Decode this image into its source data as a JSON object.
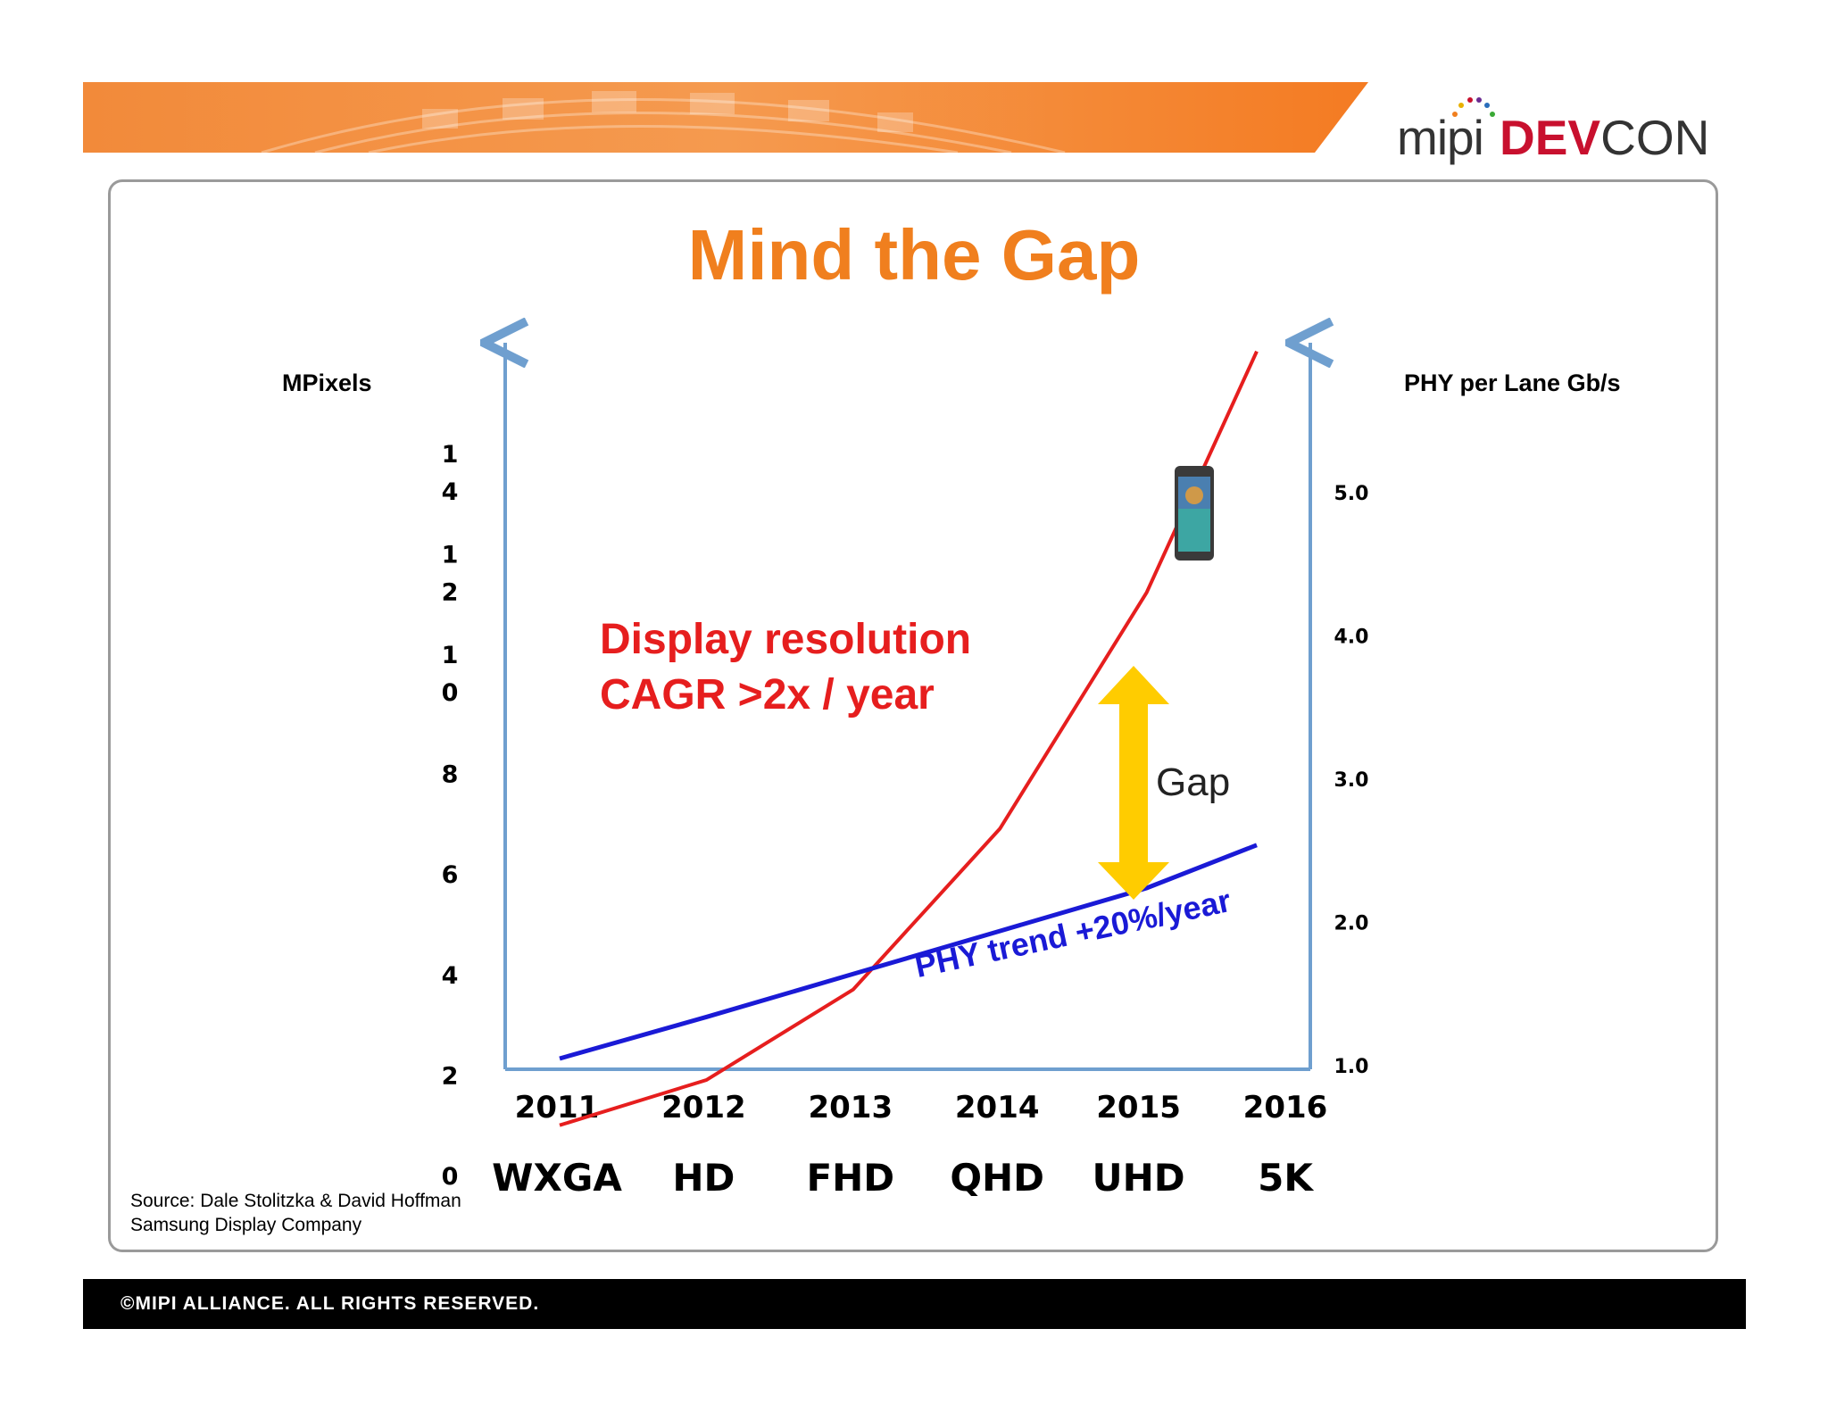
{
  "header": {
    "logo_mipi": "mipi",
    "logo_dev": "DEV",
    "logo_con": "CON"
  },
  "slide": {
    "title": "Mind the Gap",
    "left_axis_title": "MPixels",
    "right_axis_title": "PHY per Lane Gb/s",
    "annotation_line1": "Display resolution",
    "annotation_line2": "CAGR >2x / year",
    "phy_trend_label": "PHY trend +20%/year",
    "gap_label": "Gap",
    "source_line1": "Source: Dale Stolitzka & David Hoffman",
    "source_line2": "Samsung Display Company"
  },
  "footer": {
    "text": "©MIPI ALLIANCE. ALL RIGHTS RESERVED."
  },
  "colors": {
    "title": "#f07f1e",
    "resolution_series": "#e61e1e",
    "phy_series": "#1a1ad6",
    "axis": "#6f9fcf",
    "gap_arrow": "#ffcc00"
  },
  "chart_data": {
    "type": "line",
    "categories": [
      "2011",
      "2012",
      "2013",
      "2014",
      "2015",
      "2016"
    ],
    "category_labels": [
      "WXGA",
      "HD",
      "FHD",
      "QHD",
      "UHD",
      "5K"
    ],
    "left_axis": {
      "title": "MPixels",
      "ticks": [
        {
          "value": 0,
          "label": "0"
        },
        {
          "value": 2,
          "label": "2"
        },
        {
          "value": 4,
          "label": "4"
        },
        {
          "value": 6,
          "label": "6"
        },
        {
          "value": 8,
          "label": "8"
        },
        {
          "value": 10,
          "label": "1\n0"
        },
        {
          "value": 12,
          "label": "1\n2"
        },
        {
          "value": 14,
          "label": "1\n4"
        }
      ],
      "ylim": [
        0,
        14
      ]
    },
    "right_axis": {
      "title": "PHY per Lane Gb/s",
      "ticks": [
        {
          "value": 1.0,
          "label": "1.0"
        },
        {
          "value": 2.0,
          "label": "2.0"
        },
        {
          "value": 3.0,
          "label": "3.0"
        },
        {
          "value": 4.0,
          "label": "4.0"
        },
        {
          "value": 5.0,
          "label": "5.0"
        }
      ],
      "ylim": [
        1.0,
        5.0
      ]
    },
    "series": [
      {
        "axis": "left",
        "values": [
          1.0,
          1.9,
          3.7,
          6.9,
          11.6,
          16.4
        ]
      },
      {
        "axis": "right",
        "values": [
          1.05,
          1.34,
          1.64,
          1.94,
          2.24,
          2.54
        ]
      }
    ],
    "grid": false,
    "legend": "none"
  }
}
